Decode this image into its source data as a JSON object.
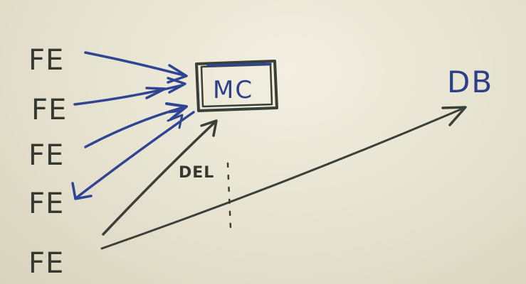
{
  "diagram": {
    "nodes": {
      "fe_1": "FE",
      "fe_2": "FE",
      "fe_3": "FE",
      "fe_4": "FE",
      "fe_5": "FE",
      "mc": "MC",
      "db": "DB"
    },
    "edge_labels": {
      "del": "DEL"
    },
    "edges": [
      {
        "from": "fe_1",
        "to": "mc",
        "direction": "to-mc"
      },
      {
        "from": "fe_2",
        "to": "mc",
        "direction": "to-mc"
      },
      {
        "from": "fe_3",
        "to": "mc",
        "direction": "to-mc"
      },
      {
        "from": "mc",
        "to": "fe_4",
        "direction": "to-fe"
      },
      {
        "from": "fe_5",
        "to": "mc",
        "direction": "to-mc",
        "label": "DEL"
      },
      {
        "from": "fe_5",
        "to": "db",
        "direction": "to-db"
      }
    ],
    "colors": {
      "dark_ink": "#3a4038",
      "blue_ink": "#2f4592",
      "board": "#e8e4d2"
    }
  }
}
